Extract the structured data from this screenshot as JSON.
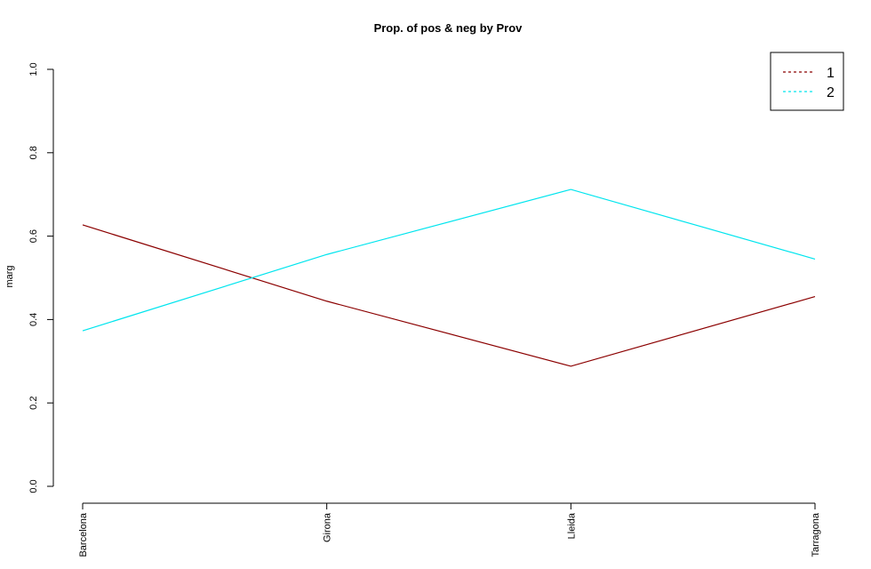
{
  "chart_data": {
    "type": "line",
    "title": "Prop. of pos & neg by Prov",
    "xlabel": "",
    "ylabel": "marg",
    "categories": [
      "Barcelona",
      "Girona",
      "Lleida",
      "Tarragona"
    ],
    "ylim": [
      0,
      1
    ],
    "yticks": [
      "0.0",
      "0.2",
      "0.4",
      "0.6",
      "0.8",
      "1.0"
    ],
    "series": [
      {
        "name": "1",
        "color": "#8b0000",
        "values": [
          0.627,
          0.444,
          0.288,
          0.455
        ]
      },
      {
        "name": "2",
        "color": "#00e5ee",
        "values": [
          0.373,
          0.556,
          0.712,
          0.545
        ]
      }
    ],
    "legend": {
      "position": "top-right",
      "line_style": "dashed"
    },
    "grid": false
  }
}
